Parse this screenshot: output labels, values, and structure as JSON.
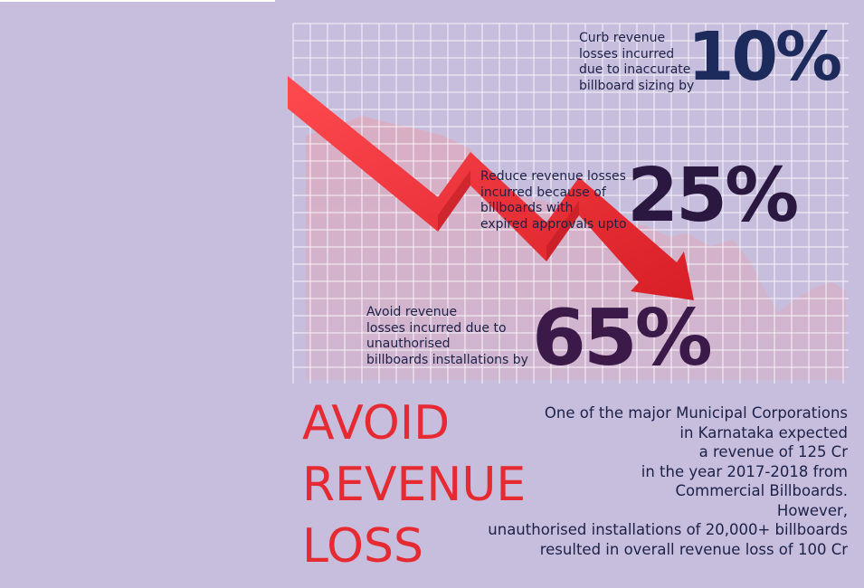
{
  "stats": [
    {
      "text_lines": [
        "Curb revenue",
        "losses incurred",
        "due to inaccurate",
        "billboard sizing by"
      ],
      "value": "10%"
    },
    {
      "text_lines": [
        "Reduce revenue losses",
        "incurred because of",
        "billboards with",
        "expired approvals upto"
      ],
      "value": "25%"
    },
    {
      "text_lines": [
        "Avoid revenue",
        "losses incurred due to",
        "unauthorised",
        "billboards installations by"
      ],
      "value": "65%"
    }
  ],
  "headline_lines": [
    "AVOID",
    "REVENUE",
    "LOSS"
  ],
  "body_lines": [
    "One of the major Municipal Corporations",
    "in Karnataka expected",
    "a revenue of 125 Cr",
    "in the year 2017-2018 from",
    "Commercial Billboards.",
    "However,",
    "unauthorised installations of 20,000+ billboards",
    "resulted in overall revenue loss of 100 Cr"
  ],
  "colors": {
    "background": "#c7bedd",
    "grid_line": "#ffffff",
    "arrow": "#e8323a",
    "headline": "#e62a32",
    "stat_10": "#1d2a5c",
    "stat_25": "#2a1840",
    "stat_65": "#3b1a4a",
    "text": "#1c2148"
  },
  "icons": {
    "trend_arrow": "down-trend-arrow-icon"
  }
}
